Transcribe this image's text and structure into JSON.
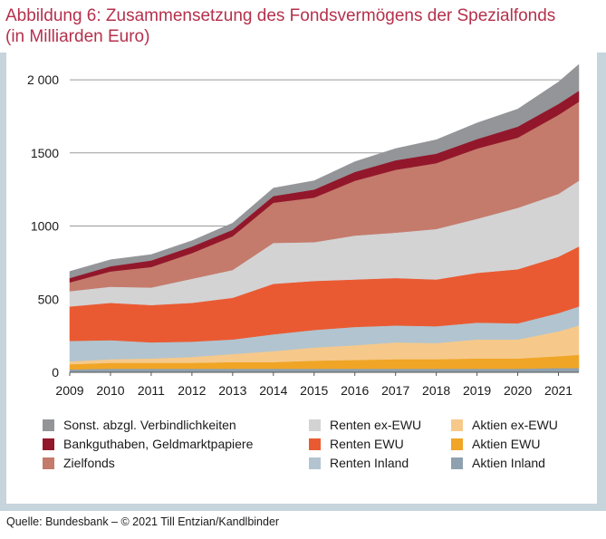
{
  "title": {
    "line1": "Abbildung 6: Zusammensetzung des Fondsvermögens der Spezialfonds",
    "line2": "(in Milliarden Euro)"
  },
  "source": "Quelle: Bundesbank – © 2021 Till Entzian/Kandlbinder",
  "chart_data": {
    "type": "area",
    "stacked": true,
    "title": "Abbildung 6: Zusammensetzung des Fondsvermögens der Spezialfonds (in Milliarden Euro)",
    "x": [
      "2009",
      "2010",
      "2011",
      "2012",
      "2013",
      "2014",
      "2015",
      "2016",
      "2017",
      "2018",
      "2019",
      "2020",
      "2021",
      "2021.5"
    ],
    "x_tick_labels": [
      "2009",
      "2010",
      "2011",
      "2012",
      "2013",
      "2014",
      "2015",
      "2016",
      "2017",
      "2018",
      "2019",
      "2020",
      "2021"
    ],
    "y_tick_labels": [
      "0",
      "500",
      "1000",
      "1500",
      "2 000"
    ],
    "ylim": [
      0,
      2050
    ],
    "grid": "horizontal",
    "legend_position": "bottom",
    "series": [
      {
        "name": "Aktien Inland",
        "color": "#8fa1ae",
        "values": [
          20,
          25,
          25,
          25,
          25,
          25,
          25,
          25,
          25,
          25,
          25,
          25,
          30,
          30
        ]
      },
      {
        "name": "Aktien EWU",
        "color": "#f0a526",
        "values": [
          35,
          40,
          40,
          40,
          45,
          45,
          55,
          60,
          65,
          65,
          70,
          70,
          80,
          90
        ]
      },
      {
        "name": "Aktien ex-EWU",
        "color": "#f6c98a",
        "values": [
          20,
          25,
          30,
          40,
          55,
          75,
          90,
          100,
          115,
          110,
          130,
          130,
          170,
          200
        ]
      },
      {
        "name": "Renten Inland",
        "color": "#b2c4cf",
        "values": [
          140,
          130,
          110,
          105,
          100,
          115,
          120,
          125,
          115,
          115,
          115,
          110,
          125,
          130
        ]
      },
      {
        "name": "Renten EWU",
        "color": "#ea5a32",
        "values": [
          235,
          255,
          255,
          265,
          285,
          345,
          335,
          325,
          325,
          320,
          340,
          370,
          385,
          410
        ]
      },
      {
        "name": "Renten ex-EWU",
        "color": "#d3d3d4",
        "values": [
          105,
          110,
          120,
          165,
          190,
          280,
          265,
          300,
          310,
          345,
          370,
          420,
          430,
          450
        ]
      },
      {
        "name": "Zielfonds",
        "color": "#c47b6c",
        "values": [
          60,
          105,
          140,
          175,
          230,
          275,
          305,
          375,
          430,
          450,
          480,
          480,
          540,
          540
        ]
      },
      {
        "name": "Bankguthaben, Geldmarktpapiere",
        "color": "#93172b",
        "values": [
          30,
          35,
          45,
          45,
          45,
          45,
          55,
          60,
          65,
          65,
          65,
          75,
          75,
          75
        ]
      },
      {
        "name": "Sonst. abzgl. Verbindlichkeiten",
        "color": "#939598",
        "values": [
          45,
          45,
          40,
          40,
          45,
          55,
          60,
          70,
          80,
          95,
          110,
          120,
          150,
          180
        ]
      }
    ]
  },
  "legend": {
    "items": [
      {
        "label": "Sonst. abzgl. Verbindlichkeiten",
        "color": "#939598"
      },
      {
        "label": "Bankguthaben, Geldmarktpapiere",
        "color": "#93172b"
      },
      {
        "label": "Zielfonds",
        "color": "#c47b6c"
      },
      {
        "label": "Renten ex-EWU",
        "color": "#d3d3d4"
      },
      {
        "label": "Renten EWU",
        "color": "#ea5a32"
      },
      {
        "label": "Renten Inland",
        "color": "#b2c4cf"
      },
      {
        "label": "Aktien ex-EWU",
        "color": "#f6c98a"
      },
      {
        "label": "Aktien EWU",
        "color": "#f0a526"
      },
      {
        "label": "Aktien Inland",
        "color": "#8fa1ae"
      }
    ]
  }
}
